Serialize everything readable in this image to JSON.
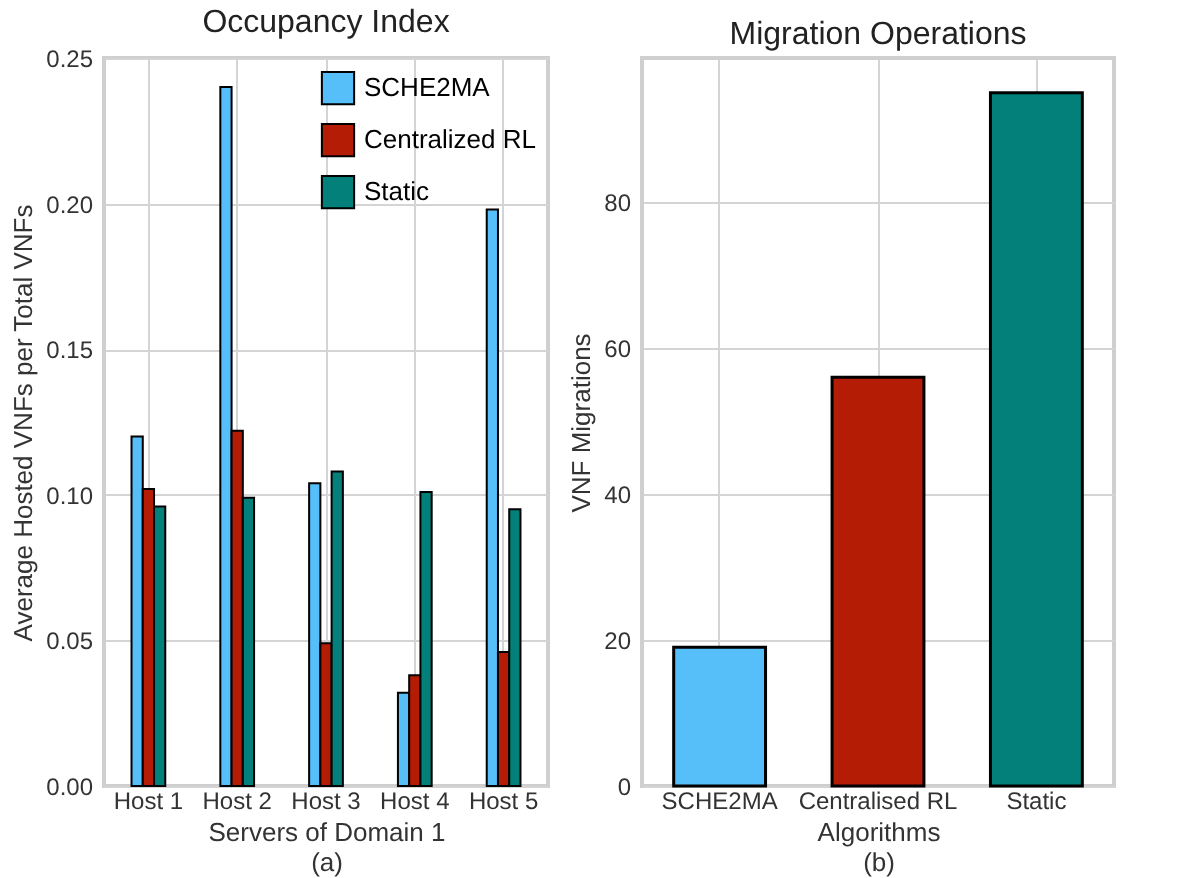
{
  "chart_data": [
    {
      "type": "bar",
      "title": "Occupancy Index",
      "xlabel": "Servers of Domain 1",
      "ylabel": "Average Hosted VNFs per Total VNFs",
      "annotations": [
        "(a)"
      ],
      "categories": [
        "Host 1",
        "Host 2",
        "Host 3",
        "Host 4",
        "Host 5"
      ],
      "series": [
        {
          "name": "SCHE2MA",
          "color": "#56bef8",
          "values": [
            0.12,
            0.24,
            0.104,
            0.032,
            0.198
          ]
        },
        {
          "name": "Centralized RL",
          "color": "#b51c05",
          "values": [
            0.102,
            0.122,
            0.049,
            0.038,
            0.046
          ]
        },
        {
          "name": "Static",
          "color": "#03807a",
          "values": [
            0.096,
            0.099,
            0.108,
            0.101,
            0.095
          ]
        }
      ],
      "ylim": [
        0,
        0.25
      ],
      "yticks": [
        {
          "value": 0,
          "label": "0.00"
        },
        {
          "value": 0.05,
          "label": "0.05"
        },
        {
          "value": 0.1,
          "label": "0.10"
        },
        {
          "value": 0.15,
          "label": "0.15"
        },
        {
          "value": 0.2,
          "label": "0.20"
        },
        {
          "value": 0.25,
          "label": "0.25"
        }
      ],
      "grid": true,
      "legend": "top right"
    },
    {
      "type": "bar",
      "title": "Migration Operations",
      "xlabel": "Algorithms",
      "ylabel": "VNF Migrations",
      "annotations": [
        "(b)"
      ],
      "categories": [
        "SCHE2MA",
        "Centralised RL",
        "Static"
      ],
      "values": [
        19,
        56,
        95
      ],
      "colors": [
        "#56bef8",
        "#b51c05",
        "#03807a"
      ],
      "ylim": [
        0,
        99.75
      ],
      "yticks": [
        0,
        20,
        40,
        60,
        80
      ],
      "grid": true
    }
  ]
}
